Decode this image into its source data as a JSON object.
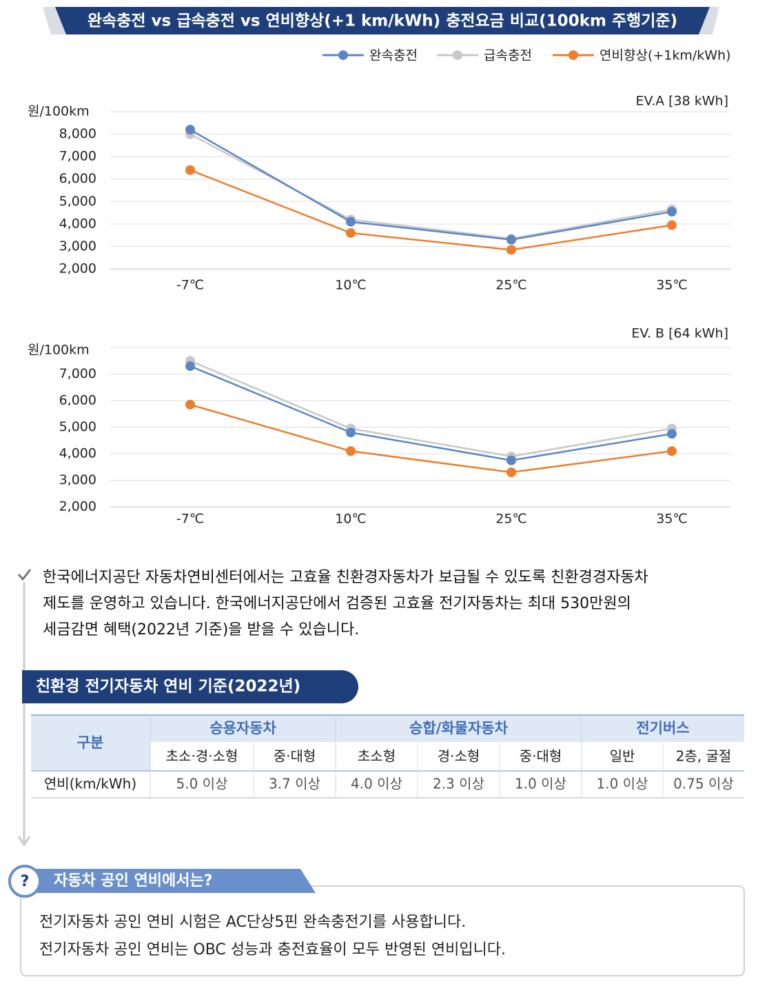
{
  "header": {
    "title": "완속충전 vs 급속충전 vs 연비향상(+1 km/kWh) 충전요금 비교(100km 주행기준)"
  },
  "chart_data": [
    {
      "type": "line",
      "subtitle": "EV.A [38 kWh]",
      "y_label": "원/100km",
      "categories": [
        "-7℃",
        "10℃",
        "25℃",
        "35℃"
      ],
      "series": [
        {
          "name": "완속충전",
          "color": "#5b86c4",
          "values": [
            8200,
            4100,
            3300,
            4550
          ]
        },
        {
          "name": "급속충전",
          "color": "#c8c8c8",
          "values": [
            8000,
            4200,
            3350,
            4650
          ]
        },
        {
          "name": "연비향상(+1km/kWh)",
          "color": "#ee7d2c",
          "values": [
            6400,
            3600,
            2850,
            3950
          ]
        }
      ],
      "ylim": [
        2000,
        9000
      ],
      "yticks": [
        {
          "value": 2000,
          "label": "2,000"
        },
        {
          "value": 3000,
          "label": "3,000"
        },
        {
          "value": 4000,
          "label": "4,000"
        },
        {
          "value": 5000,
          "label": "5,000"
        },
        {
          "value": 6000,
          "label": "6,000"
        },
        {
          "value": 7000,
          "label": "7,000"
        },
        {
          "value": 8000,
          "label": "8,000"
        }
      ],
      "grid": true
    },
    {
      "type": "line",
      "subtitle": "EV. B [64 kWh]",
      "y_label": "원/100km",
      "categories": [
        "-7℃",
        "10℃",
        "25℃",
        "35℃"
      ],
      "series": [
        {
          "name": "완속충전",
          "color": "#5b86c4",
          "values": [
            7300,
            4800,
            3750,
            4750
          ]
        },
        {
          "name": "급속충전",
          "color": "#c8c8c8",
          "values": [
            7500,
            4950,
            3900,
            4950
          ]
        },
        {
          "name": "연비향상(+1km/kWh)",
          "color": "#ee7d2c",
          "values": [
            5850,
            4100,
            3300,
            4100
          ]
        }
      ],
      "ylim": [
        2000,
        8000
      ],
      "yticks": [
        {
          "value": 2000,
          "label": "2,000"
        },
        {
          "value": 3000,
          "label": "3,000"
        },
        {
          "value": 4000,
          "label": "4,000"
        },
        {
          "value": 5000,
          "label": "5,000"
        },
        {
          "value": 6000,
          "label": "6,000"
        },
        {
          "value": 7000,
          "label": "7,000"
        }
      ],
      "grid": true
    }
  ],
  "notice": {
    "lines": [
      "한국에너지공단 자동차연비센터에서는 고효율 친환경자동차가 보급될 수 있도록 친환경경자동차",
      "제도를 운영하고 있습니다. 한국에너지공단에서 검증된 고효율 전기자동차는 최대 530만원의",
      "세금감면 혜택(2022년 기준)을 받을 수 있습니다."
    ]
  },
  "section": {
    "title": "친환경 전기자동차 연비 기준(2022년)"
  },
  "table": {
    "corner": "구분",
    "groups": [
      {
        "label": "승용자동차",
        "columns": [
          "초소·경·소형",
          "중·대형"
        ]
      },
      {
        "label": "승합/화물자동차",
        "columns": [
          "초소형",
          "경·소형",
          "중·대형"
        ]
      },
      {
        "label": "전기버스",
        "columns": [
          "일반",
          "2층, 굴절"
        ]
      }
    ],
    "row": {
      "label": "연비(km/kWh)",
      "cells": [
        "5.0 이상",
        "3.7 이상",
        "4.0 이상",
        "2.3 이상",
        "1.0 이상",
        "1.0 이상",
        "0.75 이상"
      ]
    }
  },
  "qa": {
    "icon": "?",
    "title": "자동차 공인 연비에서는?",
    "lines": [
      "전기자동차 공인 연비 시험은 AC단상5핀 완속충전기를 사용합니다.",
      "전기자동차 공인 연비는 OBC 성능과 충전효율이 모두 반영된 연비입니다."
    ]
  }
}
